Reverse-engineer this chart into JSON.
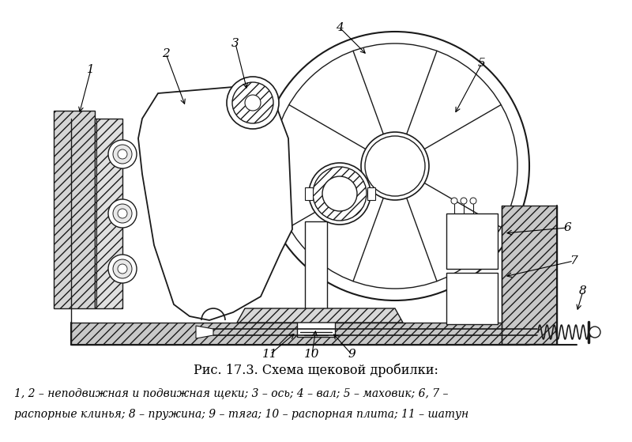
{
  "title": "Рис. 17.3. Схема щековой дробилки:",
  "caption_line1": "1, 2 – неподвижная и подвижная щеки; 3 – ось; 4 – вал; 5 – маховик; 6, 7 –",
  "caption_line2": "распорные клинья; 8 – пружина; 9 – тяга; 10 – распорная плита; 11 – шатун",
  "line_color": "#1a1a1a"
}
